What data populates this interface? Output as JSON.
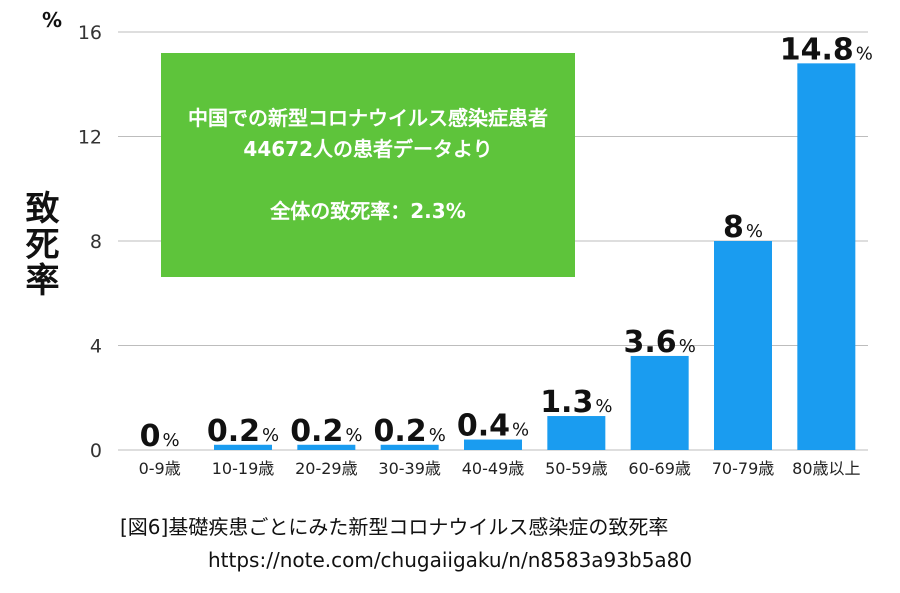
{
  "chart_data": {
    "type": "bar",
    "y_unit": "%",
    "ylabel": "致死率",
    "ylim": [
      0,
      16
    ],
    "yticks": [
      0,
      4,
      8,
      12,
      16
    ],
    "grid": true,
    "categories": [
      "0-9歳",
      "10-19歳",
      "20-29歳",
      "30-39歳",
      "40-49歳",
      "50-59歳",
      "60-69歳",
      "70-79歳",
      "80歳以上"
    ],
    "values": [
      0,
      0.2,
      0.2,
      0.2,
      0.4,
      1.3,
      3.6,
      8,
      14.8
    ],
    "value_labels": [
      "0",
      "0.2",
      "0.2",
      "0.2",
      "0.4",
      "1.3",
      "3.6",
      "8",
      "14.8"
    ],
    "value_unit": "%",
    "bar_color": "#1a9cf0"
  },
  "info_box": {
    "line1": "中国での新型コロナウイルス感染症患者",
    "line2": "44672人の患者データより",
    "line3": "全体の致死率：2.3%",
    "color": "#5ec43b"
  },
  "caption": "[図6]基礎疾患ごとにみた新型コロナウイルス感染症の致死率",
  "source_url": "https://note.com/chugaiigaku/n/n8583a93b5a80"
}
